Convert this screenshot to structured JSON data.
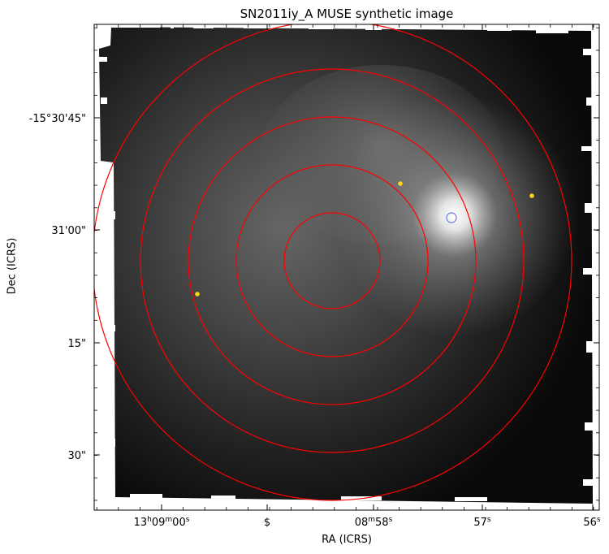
{
  "figure": {
    "title": "SN2011iy_A MUSE synthetic image",
    "xlabel": "RA (ICRS)",
    "ylabel": "Dec (ICRS)"
  },
  "axes": {
    "x_ticks": [
      {
        "h": "13",
        "m": "09",
        "s": "00",
        "text": "13h09m00s"
      },
      {
        "dollar": "$"
      },
      {
        "m": "08",
        "s": "58",
        "text": "08m58s"
      },
      {
        "s": "57",
        "text": "57s"
      },
      {
        "s": "56",
        "text": "56s"
      }
    ],
    "y_ticks": [
      "-15°30'45\"",
      "31'00\"",
      "15\"",
      "30\""
    ]
  },
  "overlays": {
    "ring_color": "#ff0000",
    "marker_color": "#ffd21a",
    "target_color": "#6b74e6",
    "rings": 5,
    "markers": 3
  }
}
